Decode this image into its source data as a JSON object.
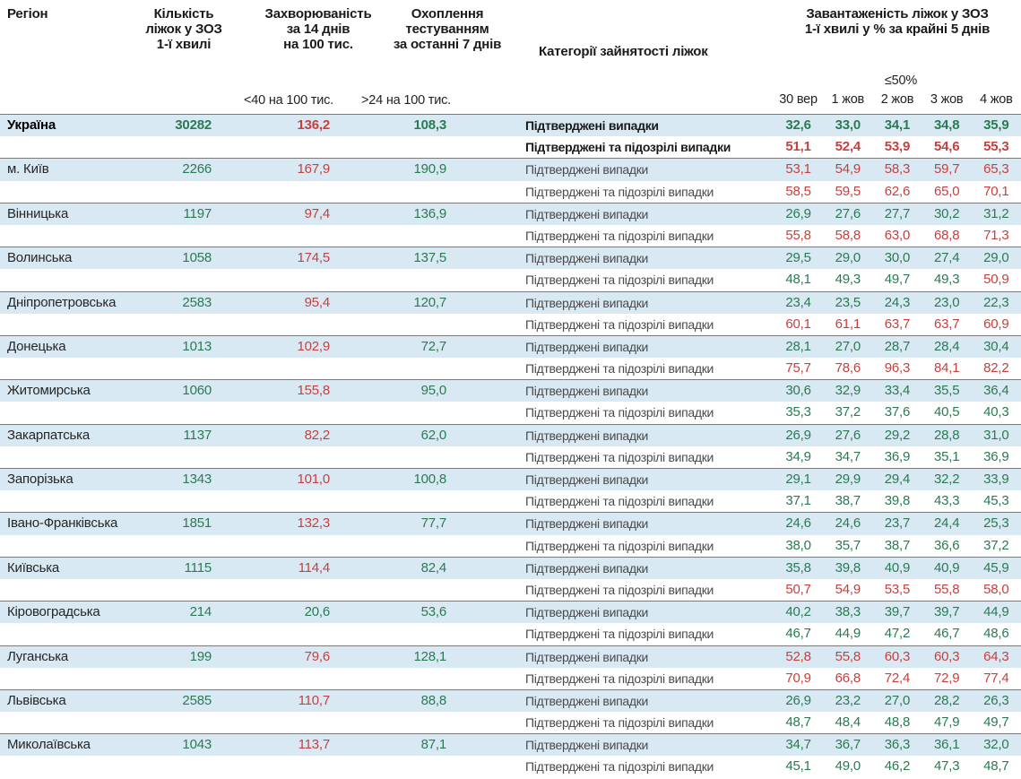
{
  "header": {
    "region": "Регіон",
    "beds": "Кількість\nліжок у ЗОЗ\n1-ї хвилі",
    "incidence": "Захворюваність\nза 14 днів\nна 100 тис.",
    "testing": "Охоплення\nтестуванням\nза останні 7 днів",
    "categories": "Категорії зайнятості ліжок",
    "occupancy": "Завантаженість ліжок у ЗОЗ\n1-ї хвилі у % за крайні 5 днів",
    "incidence_threshold": "<40 на 100 тис.",
    "testing_threshold": ">24 на 100 тис.",
    "occupancy_threshold": "≤50%",
    "dates": [
      "30 вер",
      "1 жов",
      "2 жов",
      "3 жов",
      "4 жов"
    ]
  },
  "row_labels": {
    "confirmed": "Підтверджені випадки",
    "confirmed_suspected": "Підтверджені та підозрілі випадки"
  },
  "colors": {
    "green": "#2a7a52",
    "red": "#c5403e",
    "band_blue": "#d9e9f4"
  },
  "rules": {
    "incidence_red_at_or_above": 40,
    "occupancy_red_above": 50
  },
  "chart_data": {
    "type": "table",
    "title": "Завантаженість ліжок у ЗОЗ 1-ї хвилі у % за крайні 5 днів",
    "date_columns": [
      "30 вер",
      "1 жов",
      "2 жов",
      "3 жов",
      "4 жов"
    ],
    "occupancy_row_labels": [
      "Підтверджені випадки",
      "Підтверджені та підозрілі випадки"
    ],
    "regions": [
      {
        "name": "Україна",
        "emphasis": true,
        "beds": "30282",
        "incidence": "136,2",
        "testing": "108,3",
        "confirmed": [
          "32,6",
          "33,0",
          "34,1",
          "34,8",
          "35,9"
        ],
        "confirmed_suspected": [
          "51,1",
          "52,4",
          "53,9",
          "54,6",
          "55,3"
        ]
      },
      {
        "name": "м. Київ",
        "beds": "2266",
        "incidence": "167,9",
        "testing": "190,9",
        "confirmed": [
          "53,1",
          "54,9",
          "58,3",
          "59,7",
          "65,3"
        ],
        "confirmed_suspected": [
          "58,5",
          "59,5",
          "62,6",
          "65,0",
          "70,1"
        ]
      },
      {
        "name": "Вінницька",
        "beds": "1197",
        "incidence": "97,4",
        "testing": "136,9",
        "confirmed": [
          "26,9",
          "27,6",
          "27,7",
          "30,2",
          "31,2"
        ],
        "confirmed_suspected": [
          "55,8",
          "58,8",
          "63,0",
          "68,8",
          "71,3"
        ]
      },
      {
        "name": "Волинська",
        "beds": "1058",
        "incidence": "174,5",
        "testing": "137,5",
        "confirmed": [
          "29,5",
          "29,0",
          "30,0",
          "27,4",
          "29,0"
        ],
        "confirmed_suspected": [
          "48,1",
          "49,3",
          "49,7",
          "49,3",
          "50,9"
        ]
      },
      {
        "name": "Дніпропетровська",
        "beds": "2583",
        "incidence": "95,4",
        "testing": "120,7",
        "confirmed": [
          "23,4",
          "23,5",
          "24,3",
          "23,0",
          "22,3"
        ],
        "confirmed_suspected": [
          "60,1",
          "61,1",
          "63,7",
          "63,7",
          "60,9"
        ]
      },
      {
        "name": "Донецька",
        "beds": "1013",
        "incidence": "102,9",
        "testing": "72,7",
        "confirmed": [
          "28,1",
          "27,0",
          "28,7",
          "28,4",
          "30,4"
        ],
        "confirmed_suspected": [
          "75,7",
          "78,6",
          "96,3",
          "84,1",
          "82,2"
        ]
      },
      {
        "name": "Житомирська",
        "beds": "1060",
        "incidence": "155,8",
        "testing": "95,0",
        "confirmed": [
          "30,6",
          "32,9",
          "33,4",
          "35,5",
          "36,4"
        ],
        "confirmed_suspected": [
          "35,3",
          "37,2",
          "37,6",
          "40,5",
          "40,3"
        ]
      },
      {
        "name": "Закарпатська",
        "beds": "1137",
        "incidence": "82,2",
        "testing": "62,0",
        "confirmed": [
          "26,9",
          "27,6",
          "29,2",
          "28,8",
          "31,0"
        ],
        "confirmed_suspected": [
          "34,9",
          "34,7",
          "36,9",
          "35,1",
          "36,9"
        ]
      },
      {
        "name": "Запорізька",
        "beds": "1343",
        "incidence": "101,0",
        "testing": "100,8",
        "confirmed": [
          "29,1",
          "29,9",
          "29,4",
          "32,2",
          "33,9"
        ],
        "confirmed_suspected": [
          "37,1",
          "38,7",
          "39,8",
          "43,3",
          "45,3"
        ]
      },
      {
        "name": "Івано-Франківська",
        "beds": "1851",
        "incidence": "132,3",
        "testing": "77,7",
        "confirmed": [
          "24,6",
          "24,6",
          "23,7",
          "24,4",
          "25,3"
        ],
        "confirmed_suspected": [
          "38,0",
          "35,7",
          "38,7",
          "36,6",
          "37,2"
        ]
      },
      {
        "name": "Київська",
        "beds": "1115",
        "incidence": "114,4",
        "testing": "82,4",
        "confirmed": [
          "35,8",
          "39,8",
          "40,9",
          "40,9",
          "45,9"
        ],
        "confirmed_suspected": [
          "50,7",
          "54,9",
          "53,5",
          "55,8",
          "58,0"
        ]
      },
      {
        "name": "Кіровоградська",
        "beds": "214",
        "incidence": "20,6",
        "testing": "53,6",
        "confirmed": [
          "40,2",
          "38,3",
          "39,7",
          "39,7",
          "44,9"
        ],
        "confirmed_suspected": [
          "46,7",
          "44,9",
          "47,2",
          "46,7",
          "48,6"
        ]
      },
      {
        "name": "Луганська",
        "beds": "199",
        "incidence": "79,6",
        "testing": "128,1",
        "confirmed": [
          "52,8",
          "55,8",
          "60,3",
          "60,3",
          "64,3"
        ],
        "confirmed_suspected": [
          "70,9",
          "66,8",
          "72,4",
          "72,9",
          "77,4"
        ]
      },
      {
        "name": "Львівська",
        "beds": "2585",
        "incidence": "110,7",
        "testing": "88,8",
        "confirmed": [
          "26,9",
          "23,2",
          "27,0",
          "28,2",
          "26,3"
        ],
        "confirmed_suspected": [
          "48,7",
          "48,4",
          "48,8",
          "47,9",
          "49,7"
        ]
      },
      {
        "name": "Миколаївська",
        "beds": "1043",
        "incidence": "113,7",
        "testing": "87,1",
        "confirmed": [
          "34,7",
          "36,7",
          "36,3",
          "36,1",
          "32,0"
        ],
        "confirmed_suspected": [
          "45,1",
          "49,0",
          "46,2",
          "47,3",
          "48,7"
        ]
      }
    ]
  }
}
